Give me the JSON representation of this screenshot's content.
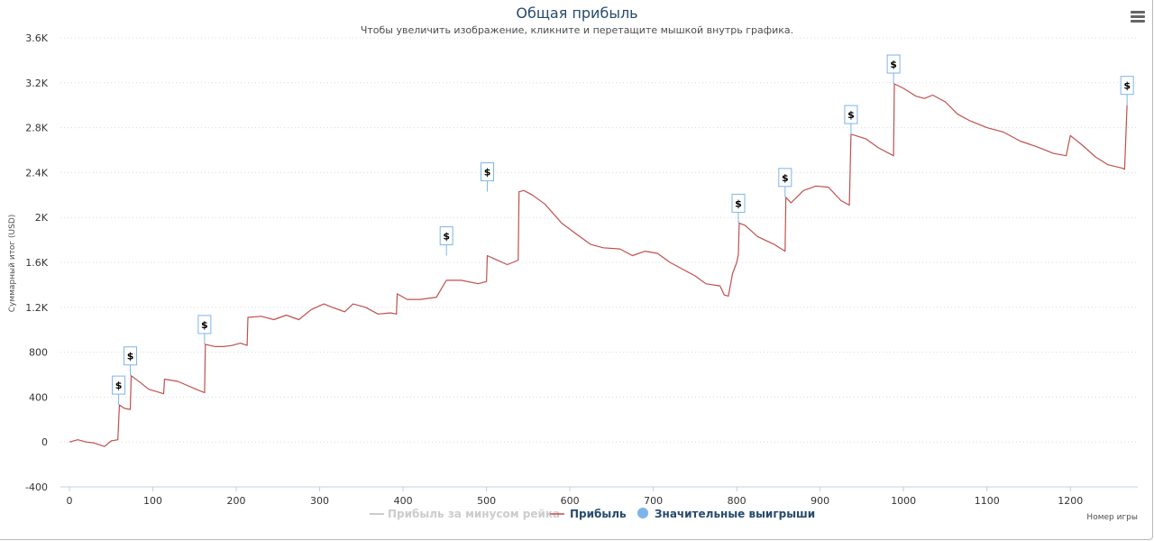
{
  "menu_icon": "hamburger-menu-icon",
  "chart_data": {
    "type": "line",
    "title": "Общая прибыль",
    "subtitle": "Чтобы увеличить изображение, кликните и перетащите мышкой внутрь графика.",
    "xlabel": "Номер игры",
    "ylabel": "Суммарный итог (USD)",
    "xlim": [
      0,
      1270
    ],
    "ylim": [
      -400,
      3600
    ],
    "x_ticks": [
      0,
      100,
      200,
      300,
      400,
      500,
      600,
      700,
      800,
      900,
      1000,
      1100,
      1200
    ],
    "y_ticks": [
      -400,
      0,
      400,
      800,
      1200,
      1600,
      2000,
      2400,
      2800,
      3200,
      3600
    ],
    "y_tick_labels": [
      "-400",
      "0",
      "400",
      "800",
      "1.2K",
      "1.6K",
      "2K",
      "2.4K",
      "2.8K",
      "3.2K",
      "3.6K"
    ],
    "grid": "horizontal-dotted",
    "legend_position": "bottom-center",
    "series": [
      {
        "name": "Прибыль",
        "color": "#c0504d",
        "x": [
          0,
          10,
          20,
          30,
          42,
          50,
          58,
          60,
          66,
          73,
          74,
          85,
          95,
          113,
          114,
          130,
          155,
          162,
          163,
          175,
          185,
          195,
          205,
          213,
          214,
          230,
          245,
          260,
          275,
          290,
          305,
          315,
          330,
          340,
          355,
          370,
          385,
          392,
          393,
          405,
          420,
          440,
          451,
          452,
          470,
          490,
          500,
          501,
          510,
          525,
          538,
          539,
          545,
          555,
          570,
          590,
          610,
          625,
          640,
          660,
          675,
          690,
          705,
          720,
          735,
          750,
          763,
          780,
          785,
          790,
          795,
          800,
          802,
          803,
          810,
          825,
          845,
          858,
          859,
          865,
          880,
          895,
          910,
          925,
          935,
          937,
          938,
          955,
          970,
          988,
          989,
          1000,
          1015,
          1025,
          1035,
          1050,
          1065,
          1080,
          1100,
          1120,
          1140,
          1160,
          1180,
          1195,
          1200,
          1215,
          1230,
          1245,
          1262,
          1265,
          1268
        ],
        "values": [
          0,
          20,
          0,
          -10,
          -40,
          10,
          20,
          330,
          300,
          290,
          590,
          530,
          470,
          430,
          560,
          540,
          460,
          440,
          870,
          850,
          850,
          860,
          880,
          860,
          1110,
          1120,
          1090,
          1130,
          1090,
          1180,
          1230,
          1200,
          1160,
          1230,
          1200,
          1140,
          1150,
          1140,
          1320,
          1270,
          1270,
          1290,
          1430,
          1440,
          1440,
          1410,
          1430,
          1660,
          1630,
          1580,
          1620,
          2230,
          2240,
          2200,
          2120,
          1950,
          1840,
          1760,
          1730,
          1720,
          1660,
          1700,
          1680,
          1600,
          1540,
          1480,
          1410,
          1390,
          1310,
          1300,
          1500,
          1600,
          1670,
          1950,
          1930,
          1830,
          1760,
          1700,
          2180,
          2130,
          2240,
          2280,
          2270,
          2150,
          2110,
          2740,
          2740,
          2700,
          2620,
          2550,
          3190,
          3150,
          3080,
          3060,
          3090,
          3030,
          2920,
          2860,
          2800,
          2760,
          2680,
          2630,
          2570,
          2550,
          2730,
          2640,
          2540,
          2470,
          2440,
          2430,
          3000
        ]
      },
      {
        "name": "Прибыль за минусом рейка",
        "visible": false,
        "color": "#cccccc"
      },
      {
        "name": "Значительные выигрыши",
        "type": "flags",
        "color": "#7cb5ec",
        "marker": "$",
        "x": [
          59,
          73,
          162,
          452,
          501,
          802,
          858,
          937,
          988,
          1268
        ],
        "values": [
          330,
          590,
          870,
          1660,
          2230,
          1950,
          2180,
          2740,
          3190,
          3000
        ]
      }
    ]
  }
}
